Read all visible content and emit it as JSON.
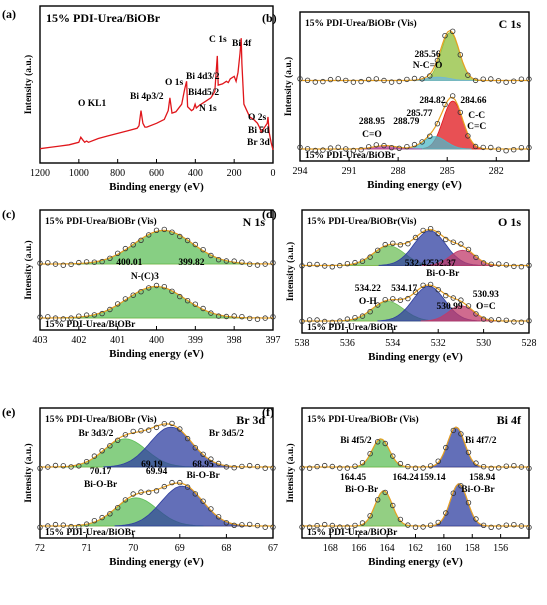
{
  "chart_data": [
    {
      "panel": "(a)",
      "type": "line",
      "title": "15% PDI-Urea/BiOBr",
      "xlabel": "Binding energy (eV)",
      "ylabel": "Intensity (a.u.)",
      "xlim": [
        1200,
        0
      ],
      "x_ticks": [
        1200,
        1000,
        800,
        600,
        400,
        200,
        0
      ],
      "series": [
        {
          "color": "#e0161b",
          "x": [
            1200,
            1150,
            1100,
            1050,
            1000,
            990,
            980,
            970,
            960,
            950,
            900,
            850,
            800,
            750,
            700,
            690,
            680,
            670,
            660,
            650,
            600,
            560,
            540,
            531,
            520,
            500,
            470,
            460,
            455,
            445,
            440,
            420,
            410,
            401,
            395,
            380,
            350,
            320,
            300,
            287,
            282,
            260,
            240,
            230,
            220,
            200,
            190,
            180,
            170,
            164,
            160,
            150,
            120,
            100,
            80,
            70,
            60,
            30,
            26,
            20,
            10,
            0
          ],
          "y": [
            0.05,
            0.06,
            0.07,
            0.08,
            0.1,
            0.14,
            0.12,
            0.1,
            0.11,
            0.1,
            0.13,
            0.15,
            0.17,
            0.19,
            0.21,
            0.23,
            0.35,
            0.25,
            0.22,
            0.22,
            0.25,
            0.28,
            0.35,
            0.45,
            0.33,
            0.34,
            0.4,
            0.48,
            0.52,
            0.58,
            0.38,
            0.35,
            0.36,
            0.4,
            0.37,
            0.39,
            0.42,
            0.45,
            0.5,
            0.78,
            0.55,
            0.56,
            0.58,
            0.57,
            0.6,
            0.62,
            0.58,
            0.65,
            0.8,
            0.92,
            0.72,
            0.4,
            0.3,
            0.28,
            0.25,
            0.22,
            0.18,
            0.25,
            0.3,
            0.18,
            0.1,
            0.04
          ]
        }
      ],
      "annotations": [
        "O KL1",
        "Bi 4p3/2",
        "O 1s",
        "Bi 4d3/2",
        "Bi4d5/2",
        "N 1s",
        "C 1s",
        "Bi 4f",
        "O 2s",
        "Bi 5d",
        "Br 3d"
      ]
    },
    {
      "panel": "(b)",
      "type": "line",
      "title": "C 1s",
      "xlabel": "Binding energy (eV)",
      "ylabel": "Intensity (a.u.)",
      "xlim": [
        294,
        280
      ],
      "x_ticks": [
        294,
        291,
        288,
        285,
        282
      ],
      "top_label": "15% PDI-Urea/BiOBr (Vis)",
      "bottom_label": "15% PDI-Urea/BiOBr",
      "peaks_top": [
        {
          "center": 284.82,
          "amp": 0.85,
          "sigma": 0.55,
          "color": "#8fbf3a"
        },
        {
          "center": 285.56,
          "amp": 0.06,
          "sigma": 0.7,
          "color": "#6fb8d8"
        }
      ],
      "peaks_bottom": [
        {
          "center": 284.66,
          "amp": 0.85,
          "sigma": 0.6,
          "color": "#e0161b"
        },
        {
          "center": 285.77,
          "amp": 0.22,
          "sigma": 0.7,
          "color": "#4fb8c8"
        },
        {
          "center": 288.79,
          "amp": 0.06,
          "sigma": 0.7,
          "color": "#b03a9a"
        }
      ],
      "labels": [
        "285.56",
        "N-C=O",
        "284.82",
        "284.66",
        "285.77",
        "C-C",
        "C=C",
        "288.95",
        "288.79",
        "C=O"
      ]
    },
    {
      "panel": "(c)",
      "type": "line",
      "title": "N 1s",
      "xlabel": "Binding energy (eV)",
      "ylabel": "Intensity (a.u.)",
      "xlim": [
        403,
        397
      ],
      "x_ticks": [
        403,
        402,
        401,
        400,
        399,
        398,
        397
      ],
      "top_label": "15% PDI-Urea/BiOBr (Vis)",
      "bottom_label": "15% PDI-Urea/BiOBr",
      "peaks_top": [
        {
          "center": 399.82,
          "amp": 0.8,
          "sigma": 0.75,
          "color": "#5fbf5a"
        }
      ],
      "peaks_bottom": [
        {
          "center": 400.01,
          "amp": 0.75,
          "sigma": 0.75,
          "color": "#5fbf5a"
        }
      ],
      "labels": [
        "400.01",
        "399.82",
        "N-(C)3"
      ]
    },
    {
      "panel": "(d)",
      "type": "line",
      "title": "O 1s",
      "xlabel": "Binding energy (eV)",
      "ylabel": "Intensity (a.u.)",
      "xlim": [
        538,
        528
      ],
      "x_ticks": [
        538,
        536,
        534,
        532,
        530,
        528
      ],
      "top_label": "15% PDI-Urea/BiOBr(Vis)",
      "bottom_label": "15% PDI-Urea/BiOBr",
      "peaks_top": [
        {
          "center": 534.17,
          "amp": 0.45,
          "sigma": 0.7,
          "color": "#6fbf5a"
        },
        {
          "center": 532.37,
          "amp": 0.8,
          "sigma": 0.7,
          "color": "#2f3fa0"
        },
        {
          "center": 530.93,
          "amp": 0.35,
          "sigma": 0.55,
          "color": "#c03a6a"
        }
      ],
      "peaks_bottom": [
        {
          "center": 534.22,
          "amp": 0.45,
          "sigma": 0.7,
          "color": "#6fbf5a"
        },
        {
          "center": 532.42,
          "amp": 0.8,
          "sigma": 0.7,
          "color": "#2f3fa0"
        },
        {
          "center": 530.99,
          "amp": 0.35,
          "sigma": 0.55,
          "color": "#c03a6a"
        }
      ],
      "labels": [
        "532.42",
        "532.37",
        "Bi-O-Br",
        "534.22",
        "534.17",
        "O-H",
        "530.99",
        "530.93",
        "O=C"
      ]
    },
    {
      "panel": "(e)",
      "type": "line",
      "title": "Br 3d",
      "xlabel": "Binding energy (eV)",
      "ylabel": "Intensity (a.u.)",
      "xlim": [
        72,
        67
      ],
      "x_ticks": [
        72,
        71,
        70,
        69,
        68,
        67
      ],
      "top_label": "15% PDI-Urea/BiOBr (Vis)",
      "bottom_label": "15% PDI-Urea/BiOBr",
      "peaks_top": [
        {
          "center": 70.17,
          "amp": 0.6,
          "sigma": 0.45,
          "color": "#5fbf5a"
        },
        {
          "center": 69.19,
          "amp": 0.85,
          "sigma": 0.45,
          "color": "#2f3fa0"
        }
      ],
      "peaks_bottom": [
        {
          "center": 69.94,
          "amp": 0.6,
          "sigma": 0.45,
          "color": "#5fbf5a"
        },
        {
          "center": 68.95,
          "amp": 0.85,
          "sigma": 0.45,
          "color": "#2f3fa0"
        }
      ],
      "labels": [
        "Br 3d3/2",
        "Br 3d5/2",
        "69.19",
        "68.95",
        "Bi-O-Br",
        "70.17",
        "69.94",
        "Bi-O-Br"
      ]
    },
    {
      "panel": "(f)",
      "type": "line",
      "title": "Bi 4f",
      "xlabel": "Binding energy (eV)",
      "ylabel": "Intensity (a.u.)",
      "xlim": [
        170,
        154
      ],
      "x_ticks": [
        168,
        166,
        164,
        162,
        160,
        158,
        156
      ],
      "top_label": "15% PDI-Urea/BiOBr (Vis)",
      "bottom_label": "15% PDI-Urea/BiOBr",
      "peaks_top": [
        {
          "center": 164.45,
          "amp": 0.6,
          "sigma": 0.6,
          "color": "#5fbf5a"
        },
        {
          "center": 159.14,
          "amp": 0.85,
          "sigma": 0.6,
          "color": "#2f3fa0"
        }
      ],
      "peaks_bottom": [
        {
          "center": 164.24,
          "amp": 0.75,
          "sigma": 0.6,
          "color": "#6fbf5a"
        },
        {
          "center": 158.94,
          "amp": 0.9,
          "sigma": 0.6,
          "color": "#2f3fa0"
        }
      ],
      "labels": [
        "Bi 4f5/2",
        "Bi 4f7/2",
        "164.45",
        "164.24",
        "Bi-O-Br",
        "159.14",
        "158.94",
        "Bi-O-Br"
      ]
    }
  ]
}
